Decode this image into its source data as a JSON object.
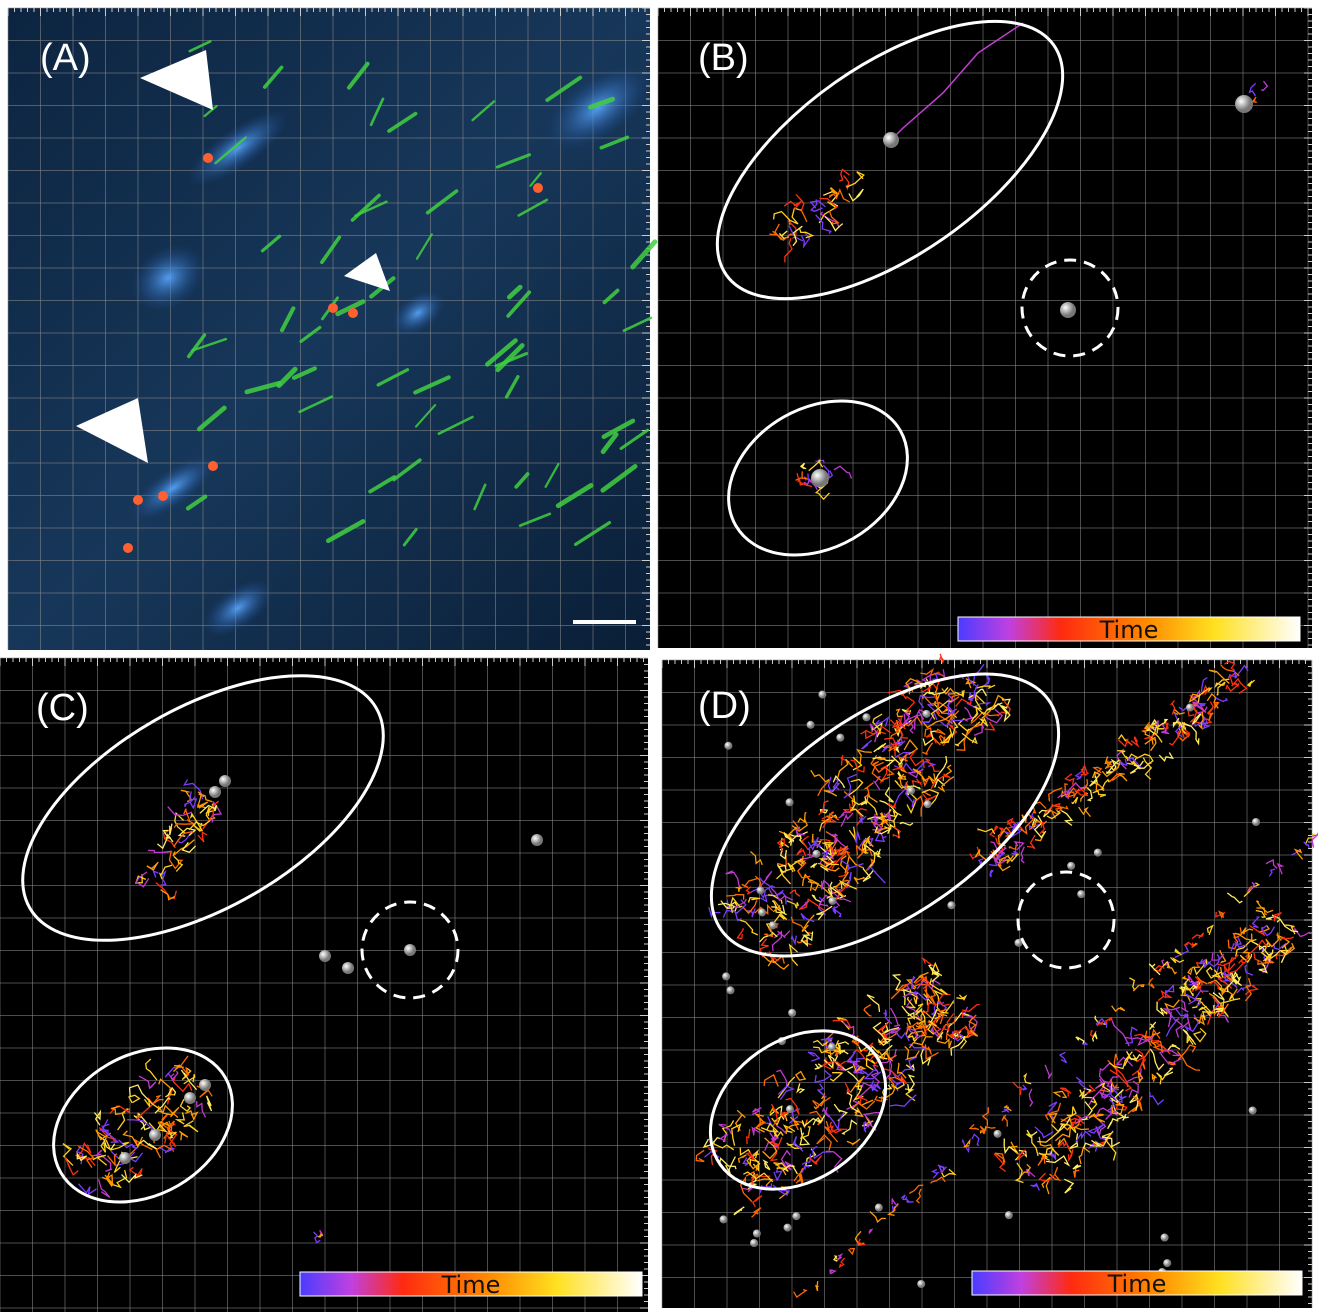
{
  "panels": [
    {
      "label": "(A)"
    },
    {
      "label": "(B)",
      "colorbar": "Time"
    },
    {
      "label": "(C)",
      "colorbar": "Time"
    },
    {
      "label": "(D)",
      "colorbar": "Time"
    }
  ]
}
